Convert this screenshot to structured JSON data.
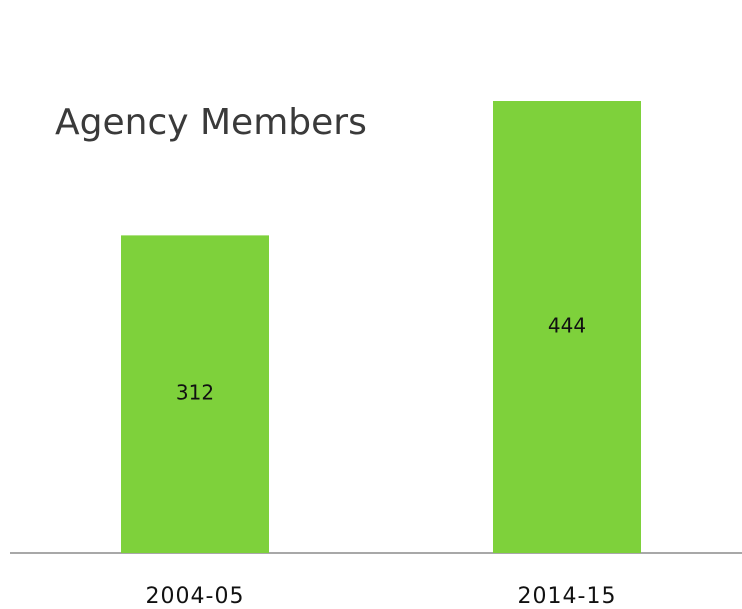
{
  "chart_data": {
    "type": "bar",
    "title": "Agency Members",
    "categories": [
      "2004-05",
      "2014-15"
    ],
    "values": [
      312,
      444
    ],
    "color": "#7ed13b"
  }
}
